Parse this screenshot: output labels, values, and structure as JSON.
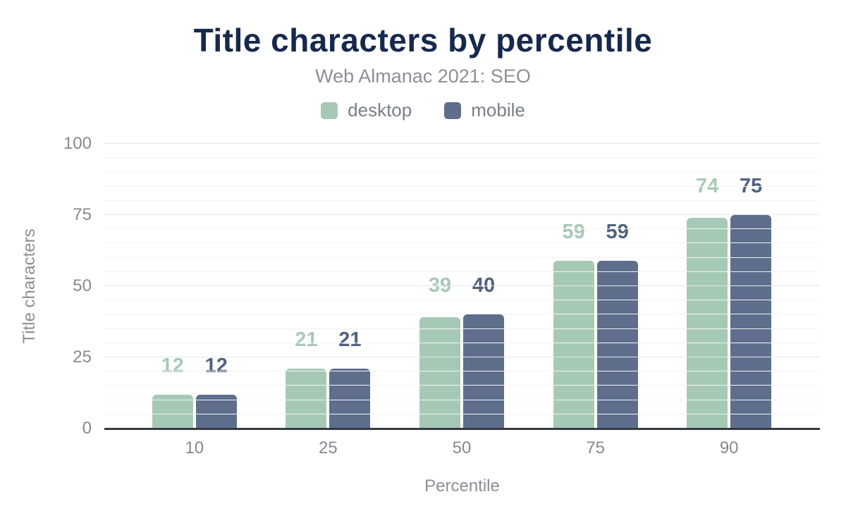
{
  "header": {
    "title": "Title characters by percentile",
    "subtitle": "Web Almanac 2021: SEO"
  },
  "legend": [
    {
      "label": "desktop",
      "color": "#a6c9b5"
    },
    {
      "label": "mobile",
      "color": "#5e6e8c"
    }
  ],
  "chart_data": {
    "type": "bar",
    "title": "Title characters by percentile",
    "subtitle": "Web Almanac 2021: SEO",
    "categories": [
      "10",
      "25",
      "50",
      "75",
      "90"
    ],
    "series": [
      {
        "name": "desktop",
        "color": "#a6c9b5",
        "label_color": "#a6c9b5",
        "values": [
          12,
          21,
          39,
          59,
          74
        ]
      },
      {
        "name": "mobile",
        "color": "#5e6e8c",
        "label_color": "#50627f",
        "values": [
          12,
          21,
          40,
          59,
          75
        ]
      }
    ],
    "xlabel": "Percentile",
    "ylabel": "Title characters",
    "ylim": [
      0,
      100
    ],
    "y_major_ticks": [
      0,
      25,
      50,
      75,
      100
    ],
    "y_minor_step": 5,
    "grid": true,
    "legend_position": "top",
    "colors": {
      "title": "#16294c",
      "subtitle": "#8b9096",
      "axis_text": "#85898f",
      "axis_line": "#363b42",
      "grid_major": "#e5e6e8",
      "grid_minor": "#f3f3f5"
    }
  }
}
